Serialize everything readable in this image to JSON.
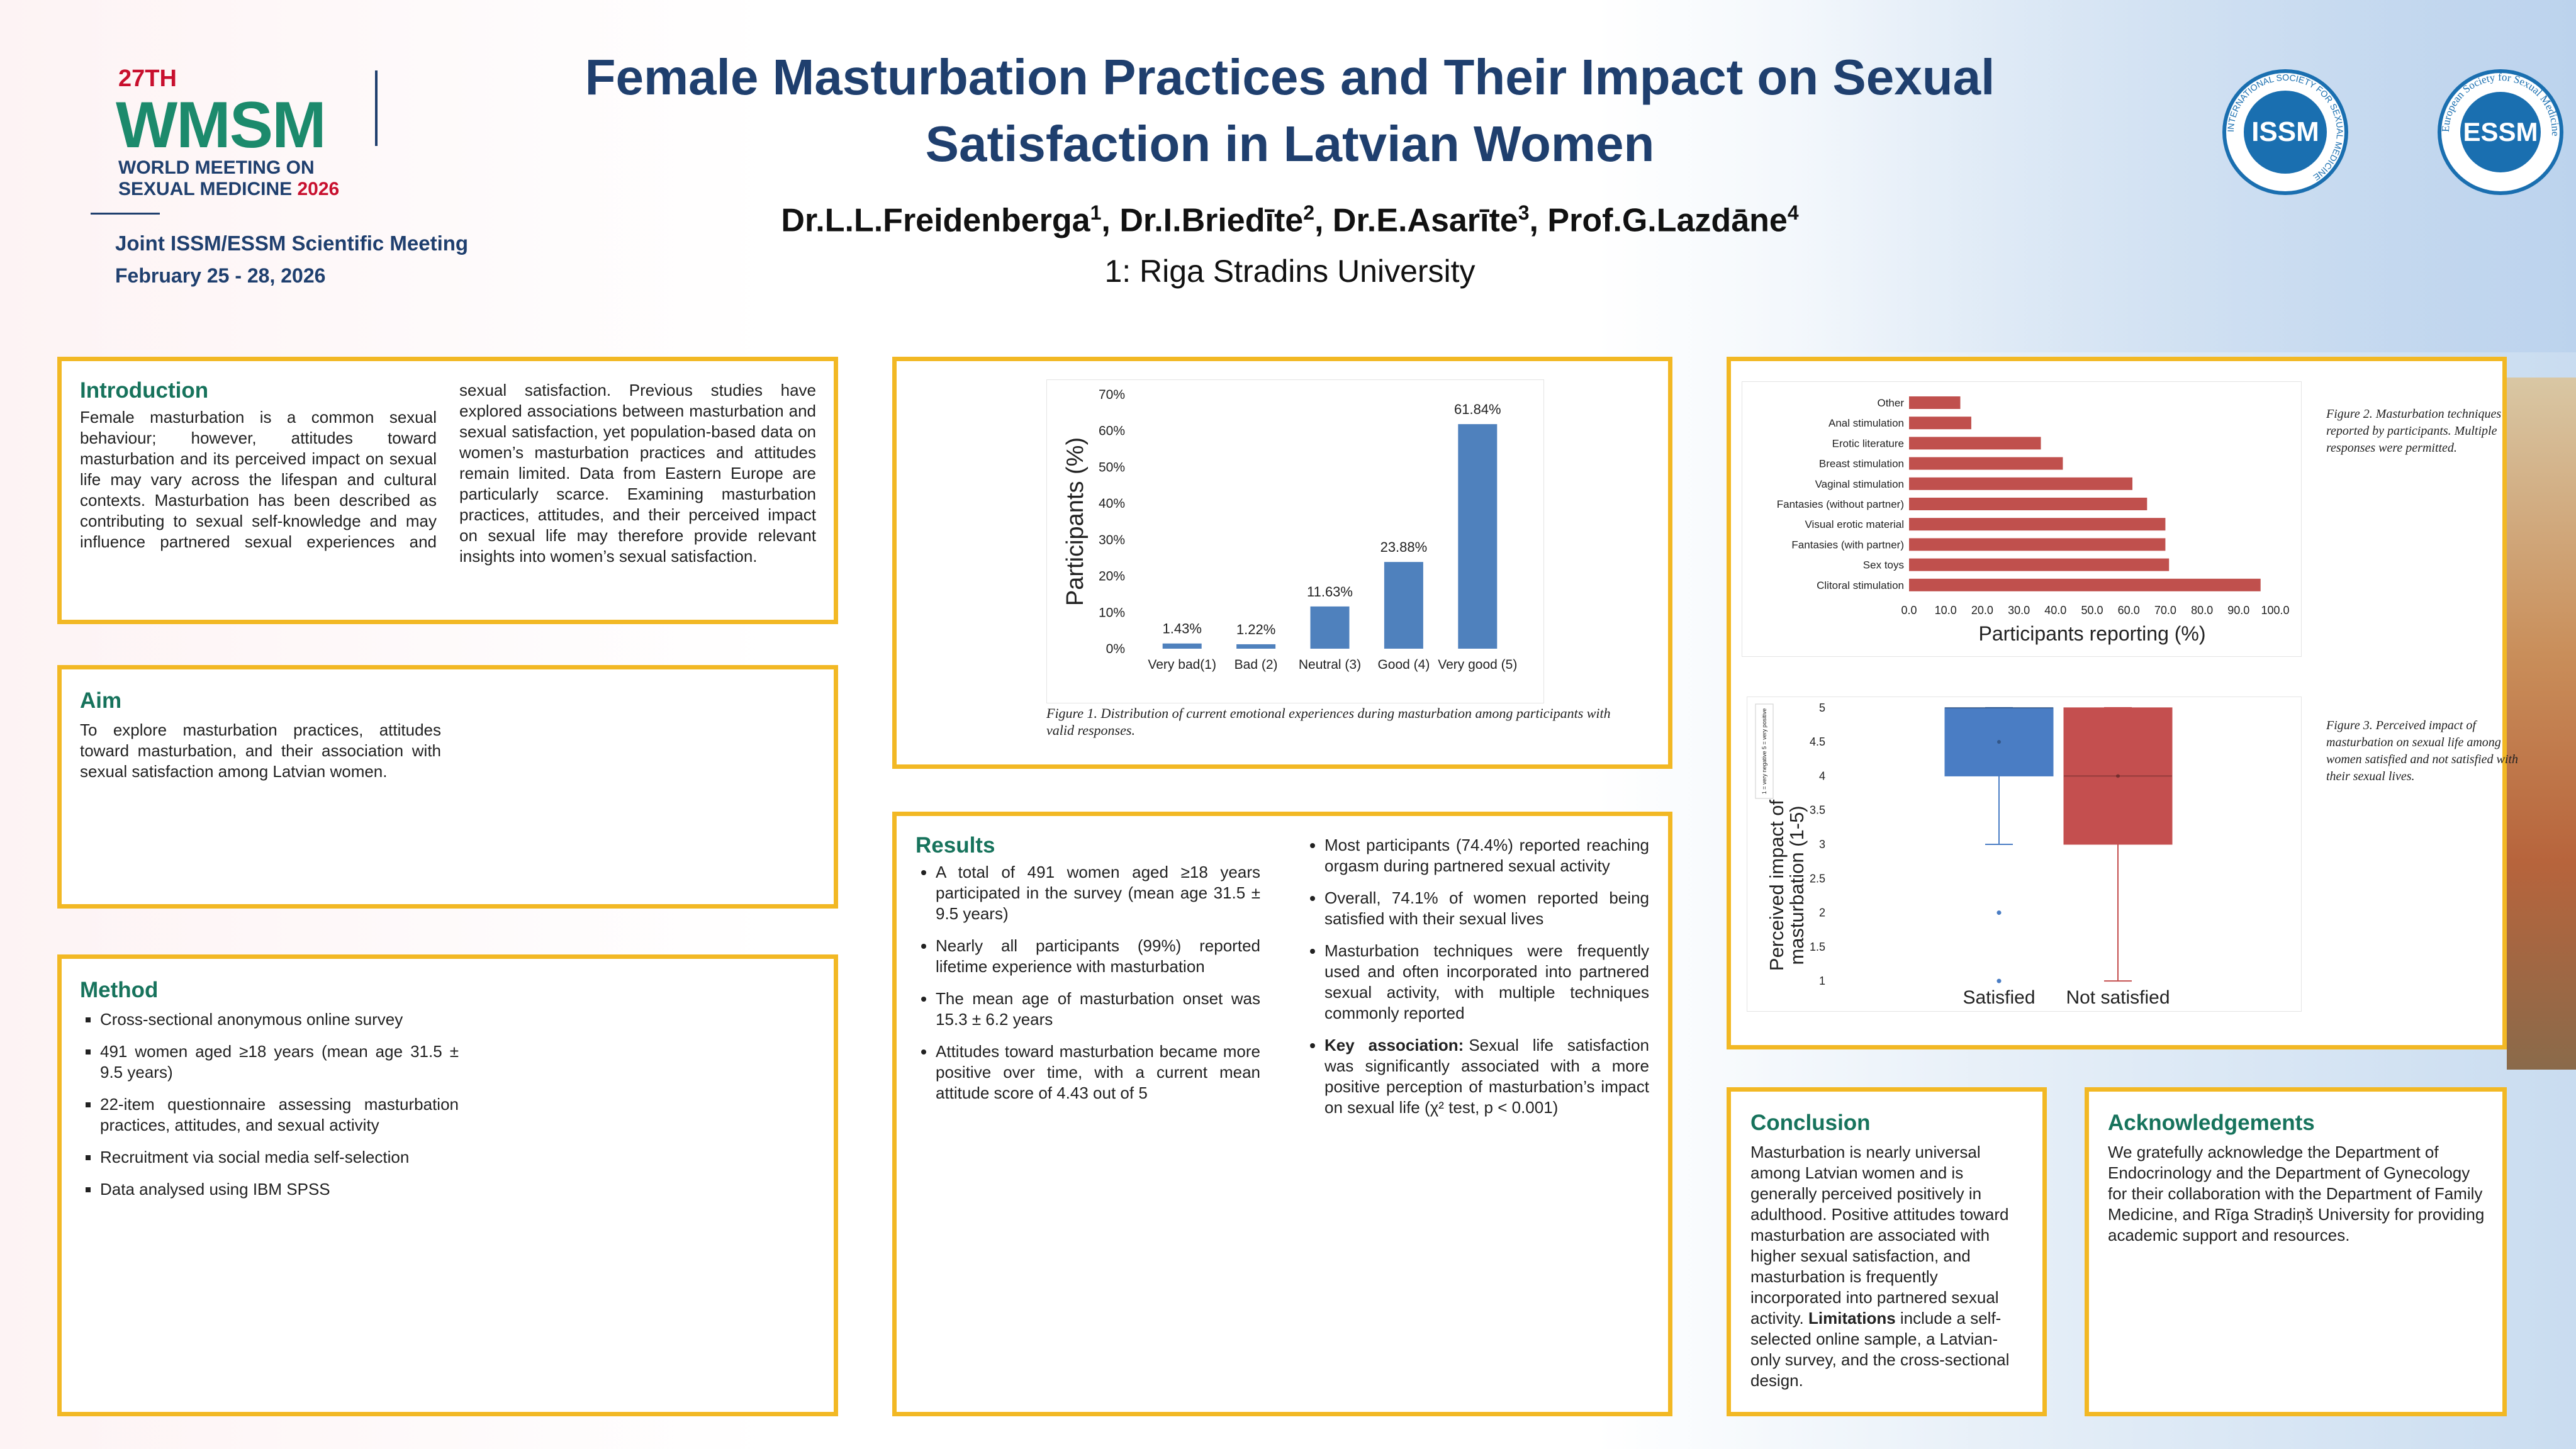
{
  "header": {
    "logo": {
      "edition": "27TH",
      "acronym": "WMSM",
      "line1": "WORLD MEETING ON",
      "line2": "SEXUAL MEDICINE",
      "year": "2026",
      "meeting": "Joint ISSM/ESSM Scientific Meeting",
      "dates": "February 25 - 28, 2026"
    },
    "title": "Female Masturbation Practices and Their Impact on Sexual Satisfaction in Latvian Women",
    "authors": [
      {
        "name": "Dr.L.L.Freidenberga",
        "sup": "1"
      },
      {
        "name": "Dr.I.Briedīte",
        "sup": "2"
      },
      {
        "name": "Dr.E.Asarīte",
        "sup": "3"
      },
      {
        "name": "Prof.G.Lazdāne",
        "sup": "4"
      }
    ],
    "affiliation": "1: Riga Stradins University",
    "society_logos": [
      {
        "abbr": "ISSM",
        "ring": "INTERNATIONAL SOCIETY FOR SEXUAL MEDICINE"
      },
      {
        "abbr": "ESSM",
        "ring": "European Society for Sexual Medicine"
      }
    ]
  },
  "introduction": {
    "heading": "Introduction",
    "text": "Female masturbation is a common sexual behaviour; however, attitudes toward masturbation and its perceived impact on sexual life may vary across the lifespan and cultural contexts. Masturbation has been described as contributing to sexual self-knowledge and may influence partnered sexual experiences and sexual satisfaction. Previous studies have explored associations between masturbation and sexual satisfaction, yet population-based data on women’s masturbation practices and attitudes remain limited. Data from Eastern Europe are particularly scarce. Examining masturbation practices, attitudes, and their perceived impact on sexual life may therefore provide relevant insights into women’s sexual satisfaction."
  },
  "aim": {
    "heading": "Aim",
    "text": "To explore masturbation practices, attitudes toward masturbation, and their association with sexual satisfaction among Latvian women."
  },
  "method": {
    "heading": "Method",
    "items": [
      "Cross-sectional anonymous online survey",
      "491 women aged ≥18 years (mean age 31.5 ± 9.5 years)",
      "22-item questionnaire assessing masturbation practices, attitudes, and sexual activity",
      "Recruitment via social media self-selection",
      "Data analysed using IBM SPSS"
    ]
  },
  "results": {
    "heading": "Results",
    "items": [
      "A total of 491 women aged ≥18 years participated in the survey (mean age 31.5 ± 9.5 years)",
      "Nearly all participants (99%) reported lifetime experience with masturbation",
      "The mean age of masturbation onset was 15.3 ± 6.2 years",
      "Attitudes toward masturbation became more positive over time, with a current mean attitude score of 4.43 out of 5",
      "Most participants (74.4%) reported reaching orgasm during partnered sexual activity",
      "Overall, 74.1% of women reported being satisfied with their sexual lives",
      "Masturbation techniques were frequently used and often incorporated into partnered sexual activity, with multiple techniques commonly reported"
    ],
    "key": {
      "label": "Key association:",
      "text": "Sexual life satisfaction was significantly associated with a more positive perception of masturbation’s impact on sexual life (χ² test, p < 0.001)"
    }
  },
  "conclusion": {
    "heading": "Conclusion",
    "text": "Masturbation is nearly universal among Latvian women and is generally perceived positively in adulthood. Positive attitudes toward masturbation are associated with higher sexual satisfaction, and masturbation is frequently incorporated into partnered sexual activity.",
    "limitations_label": "Limitations",
    "limitations_text": "include a self-selected online sample, a Latvian-only survey, and the cross-sectional design."
  },
  "acknowledgements": {
    "heading": "Acknowledgements",
    "text": "We gratefully acknowledge the Department of Endocrinology and the Department of Gynecology for their collaboration with the Department of Family Medicine, and Rīga Stradiņš University for providing academic support and resources."
  },
  "chart_data": [
    {
      "type": "bar",
      "caption": "Figure 1. Distribution of current emotional experiences during masturbation among participants with valid responses.",
      "ylabel": "Participants (%)",
      "categories": [
        "Very bad(1)",
        "Bad (2)",
        "Neutral (3)",
        "Good (4)",
        "Very good (5)"
      ],
      "values": [
        1.43,
        1.22,
        11.63,
        23.88,
        61.84
      ],
      "value_labels": [
        "1.43%",
        "1.22%",
        "11.63%",
        "23.88%",
        "61.84%"
      ],
      "color": "#4f81bd",
      "ylim": [
        0,
        70
      ],
      "yticks": [
        {
          "value": 0,
          "label": "0%"
        },
        {
          "value": 10,
          "label": "10%"
        },
        {
          "value": 20,
          "label": "20%"
        },
        {
          "value": 30,
          "label": "30%"
        },
        {
          "value": 40,
          "label": "40%"
        },
        {
          "value": 50,
          "label": "50%"
        },
        {
          "value": 60,
          "label": "60%"
        },
        {
          "value": 70,
          "label": "70%"
        }
      ]
    },
    {
      "type": "barh",
      "caption": "Figure 2. Masturbation techniques reported by participants. Multiple responses were permitted.",
      "xlabel": "Participants reporting (%)",
      "categories": [
        "Other",
        "Anal stimulation",
        "Erotic literature",
        "Breast stimulation",
        "Vaginal stimulation",
        "Fantasies (without partner)",
        "Visual erotic material",
        "Fantasies (with partner)",
        "Sex toys",
        "Clitoral stimulation"
      ],
      "values": [
        14,
        17,
        36,
        42,
        61,
        65,
        70,
        70,
        71,
        96
      ],
      "color": "#c0504d",
      "xlim": [
        0,
        100
      ],
      "xticks": [
        {
          "value": 0,
          "label": "0.0"
        },
        {
          "value": 10,
          "label": "10.0"
        },
        {
          "value": 20,
          "label": "20.0"
        },
        {
          "value": 30,
          "label": "30.0"
        },
        {
          "value": 40,
          "label": "40.0"
        },
        {
          "value": 50,
          "label": "50.0"
        },
        {
          "value": 60,
          "label": "60.0"
        },
        {
          "value": 70,
          "label": "70.0"
        },
        {
          "value": 80,
          "label": "80.0"
        },
        {
          "value": 90,
          "label": "90.0"
        },
        {
          "value": 100,
          "label": "100.0"
        }
      ]
    },
    {
      "type": "box",
      "caption": "Figure 3. Perceived impact of masturbation on sexual life among women satisfied and not satisfied with their sexual lives.",
      "ylabel": [
        "Perceived impact of",
        "masturbation (1-5)"
      ],
      "note": "1 = very negative 5 = very positive",
      "categories": [
        "Satisfied",
        "Not satisfied"
      ],
      "series": [
        {
          "name": "Satisfied",
          "color": "#4a7dc4",
          "whisker_low": 3,
          "q1": 4,
          "median": 5,
          "q3": 5,
          "whisker_high": 5,
          "mean": 4.5,
          "outliers": [
            2,
            1
          ]
        },
        {
          "name": "Not satisfied",
          "color": "#c44f4f",
          "whisker_low": 1,
          "q1": 3,
          "median": 4,
          "q3": 5,
          "whisker_high": 5,
          "mean": 4,
          "outliers": []
        }
      ],
      "ylim": [
        0.9,
        5.1
      ],
      "yticks": [
        1,
        1.5,
        2,
        2.5,
        3,
        3.5,
        4,
        4.5,
        5
      ]
    }
  ]
}
